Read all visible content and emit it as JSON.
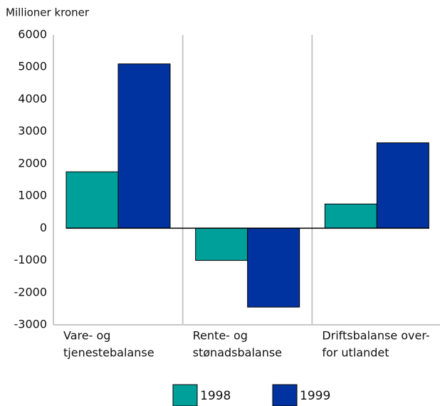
{
  "chart_data": {
    "type": "bar",
    "y_label": "Millioner kroner",
    "categories": [
      [
        "Vare- og",
        "tjenestebalanse"
      ],
      [
        "Rente- og",
        "stønadsbalanse"
      ],
      [
        "Driftsbalanse over-",
        "for utlandet"
      ]
    ],
    "series": [
      {
        "name": "1998",
        "color": "#00a09a",
        "values": [
          1750,
          -1000,
          750
        ]
      },
      {
        "name": "1999",
        "color": "#0033a0",
        "values": [
          5100,
          -2450,
          2650
        ]
      }
    ],
    "ylim": [
      -3000,
      6000
    ],
    "yticks": [
      -3000,
      -2000,
      -1000,
      0,
      1000,
      2000,
      3000,
      4000,
      5000,
      6000
    ],
    "grid": true
  }
}
